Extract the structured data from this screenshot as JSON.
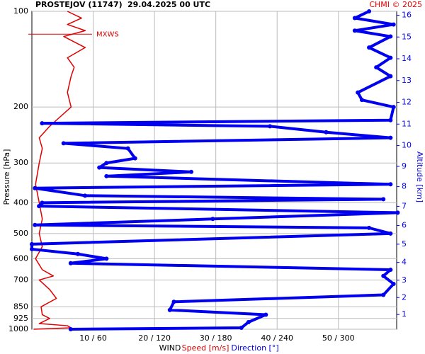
{
  "chart_data": {
    "type": "line",
    "title": "PROSTEJOV (11747)",
    "subtitle": "29.04.2025 00 UTC",
    "credit": "CHMI © 2025",
    "ylabel": "Pressure [hPa]",
    "y2label": "Altitude [km]",
    "xlabel": "WIND",
    "ylim": [
      1000,
      100
    ],
    "ylog": true,
    "yticks": [
      100,
      200,
      300,
      400,
      500,
      600,
      700,
      850,
      925,
      1000
    ],
    "y2ticks": [
      1,
      2,
      3,
      4,
      5,
      6,
      7,
      8,
      9,
      10,
      11,
      12,
      13,
      14,
      15,
      16
    ],
    "xlim": [
      0,
      59.5
    ],
    "x2lim": [
      0,
      357
    ],
    "xticks": [
      {
        "value": 10,
        "label": "10 / 60"
      },
      {
        "value": 20,
        "label": "20 / 120"
      },
      {
        "value": 30,
        "label": "30 / 180"
      },
      {
        "value": 40,
        "label": "40 / 240"
      },
      {
        "value": 50,
        "label": "50 / 300"
      }
    ],
    "grid": true,
    "annotation": {
      "label": "MXWS",
      "pressure": 118
    },
    "series": [
      {
        "name": "Speed [m/s]",
        "color": "#e00000",
        "pressure": [
          1000,
          990,
          975,
          960,
          925,
          900,
          850,
          800,
          750,
          700,
          680,
          650,
          600,
          550,
          500,
          450,
          400,
          350,
          300,
          270,
          250,
          230,
          220,
          200,
          180,
          160,
          150,
          140,
          130,
          120,
          115,
          110,
          105,
          100
        ],
        "values": [
          0.3,
          6.4,
          5.8,
          1.2,
          2.9,
          1.7,
          1.5,
          4.0,
          2.9,
          1.2,
          3.5,
          1.7,
          0.6,
          1.7,
          1.2,
          1.7,
          1.2,
          0.6,
          1.2,
          1.7,
          1.2,
          2.9,
          4.0,
          6.4,
          5.8,
          6.4,
          6.9,
          5.8,
          8.7,
          5.2,
          8.7,
          5.8,
          8.1,
          5.8
        ]
      },
      {
        "name": "Direction [°]",
        "color": "#0000ee",
        "axis": "x2",
        "pressure": [
          1000,
          990,
          950,
          900,
          870,
          820,
          780,
          720,
          680,
          650,
          620,
          600,
          580,
          560,
          540,
          500,
          480,
          470,
          450,
          430,
          410,
          400,
          390,
          380,
          360,
          350,
          330,
          320,
          310,
          300,
          290,
          270,
          260,
          250,
          240,
          230,
          225,
          220,
          200,
          190,
          180,
          160,
          150,
          140,
          130,
          120,
          115,
          110,
          105,
          100
        ],
        "values": [
          38,
          205,
          212,
          229,
          135,
          139,
          344,
          354,
          344,
          351,
          38,
          73,
          45,
          0,
          0,
          351,
          330,
          3,
          177,
          358,
          7,
          10,
          344,
          52,
          3,
          351,
          73,
          156,
          66,
          73,
          101,
          94,
          31,
          351,
          288,
          233,
          10,
          351,
          354,
          323,
          319,
          351,
          337,
          351,
          330,
          351,
          316,
          354,
          316,
          330
        ]
      }
    ]
  }
}
